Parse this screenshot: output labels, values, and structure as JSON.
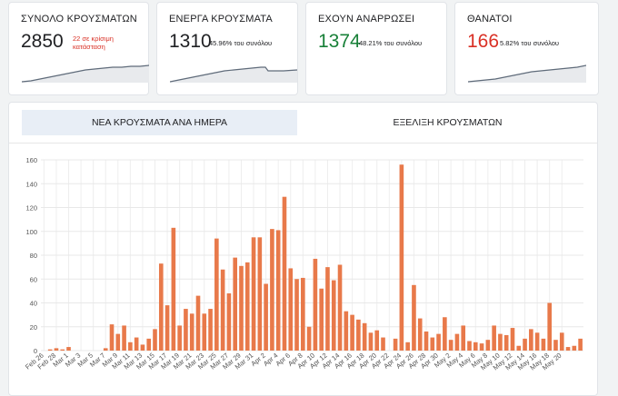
{
  "cards": [
    {
      "title": "ΣΥΝΟΛΟ ΚΡΟΥΣΜΑΤΩΝ",
      "value": "2850",
      "note": "22 σε κρίσιμη κατάσταση",
      "note_color": "#d93025"
    },
    {
      "title": "ΕΝΕΡΓΑ ΚΡΟΥΣΜΑΤΑ",
      "value": "1310",
      "note": "45.96% του συνόλου"
    },
    {
      "title": "ΕΧΟΥΝ ΑΝΑΡΡΩΣΕΙ",
      "value": "1374",
      "note": "48.21% του συνόλου",
      "value_color": "#188038"
    },
    {
      "title": "ΘΑΝΑΤΟΙ",
      "value": "166",
      "note": "5.82% του συνόλου",
      "value_color": "#d93025"
    }
  ],
  "tabs": [
    {
      "label": "ΝΕΑ ΚΡΟΥΣΜΑΤΑ ΑΝΑ ΗΜΕΡΑ",
      "active": true
    },
    {
      "label": "ΕΞΕΛΙΞΗ ΚΡΟΥΣΜΑΤΩΝ",
      "active": false
    }
  ],
  "chart_data": {
    "type": "bar",
    "bar_color": "#e8794a",
    "ylim": [
      0,
      160
    ],
    "yticks": [
      0,
      20,
      40,
      60,
      80,
      100,
      120,
      140,
      160
    ],
    "grid": true,
    "x_tick_labels": [
      "Feb 26",
      "Feb 28",
      "Mar 1",
      "Mar 3",
      "Mar 5",
      "Mar 7",
      "Mar 9",
      "Mar 11",
      "Mar 13",
      "Mar 15",
      "Mar 17",
      "Mar 19",
      "Mar 21",
      "Mar 23",
      "Mar 25",
      "Mar 27",
      "Mar 29",
      "Mar 31",
      "Apr 2",
      "Apr 4",
      "Apr 6",
      "Apr 8",
      "Apr 10",
      "Apr 12",
      "Apr 14",
      "Apr 16",
      "Apr 18",
      "Apr 20",
      "Apr 22",
      "Apr 24",
      "Apr 26",
      "Apr 28",
      "Apr 30",
      "May 2",
      "May 4",
      "May 6",
      "May 8",
      "May 10",
      "May 12",
      "May 14",
      "May 16",
      "May 18",
      "May 20"
    ],
    "values": [
      0,
      1,
      2,
      1,
      3,
      0,
      0,
      0,
      0,
      0,
      2,
      22,
      14,
      21,
      7,
      11,
      5,
      10,
      18,
      73,
      38,
      103,
      21,
      35,
      31,
      46,
      31,
      35,
      94,
      68,
      48,
      78,
      71,
      74,
      95,
      95,
      56,
      102,
      101,
      129,
      69,
      60,
      61,
      20,
      77,
      52,
      70,
      59,
      72,
      33,
      30,
      26,
      23,
      15,
      17,
      11,
      0,
      10,
      156,
      7,
      55,
      27,
      16,
      11,
      14,
      28,
      9,
      14,
      21,
      8,
      7,
      6,
      9,
      21,
      14,
      13,
      19,
      4,
      10,
      18,
      15,
      10,
      40,
      9,
      15,
      3,
      4,
      10
    ]
  }
}
